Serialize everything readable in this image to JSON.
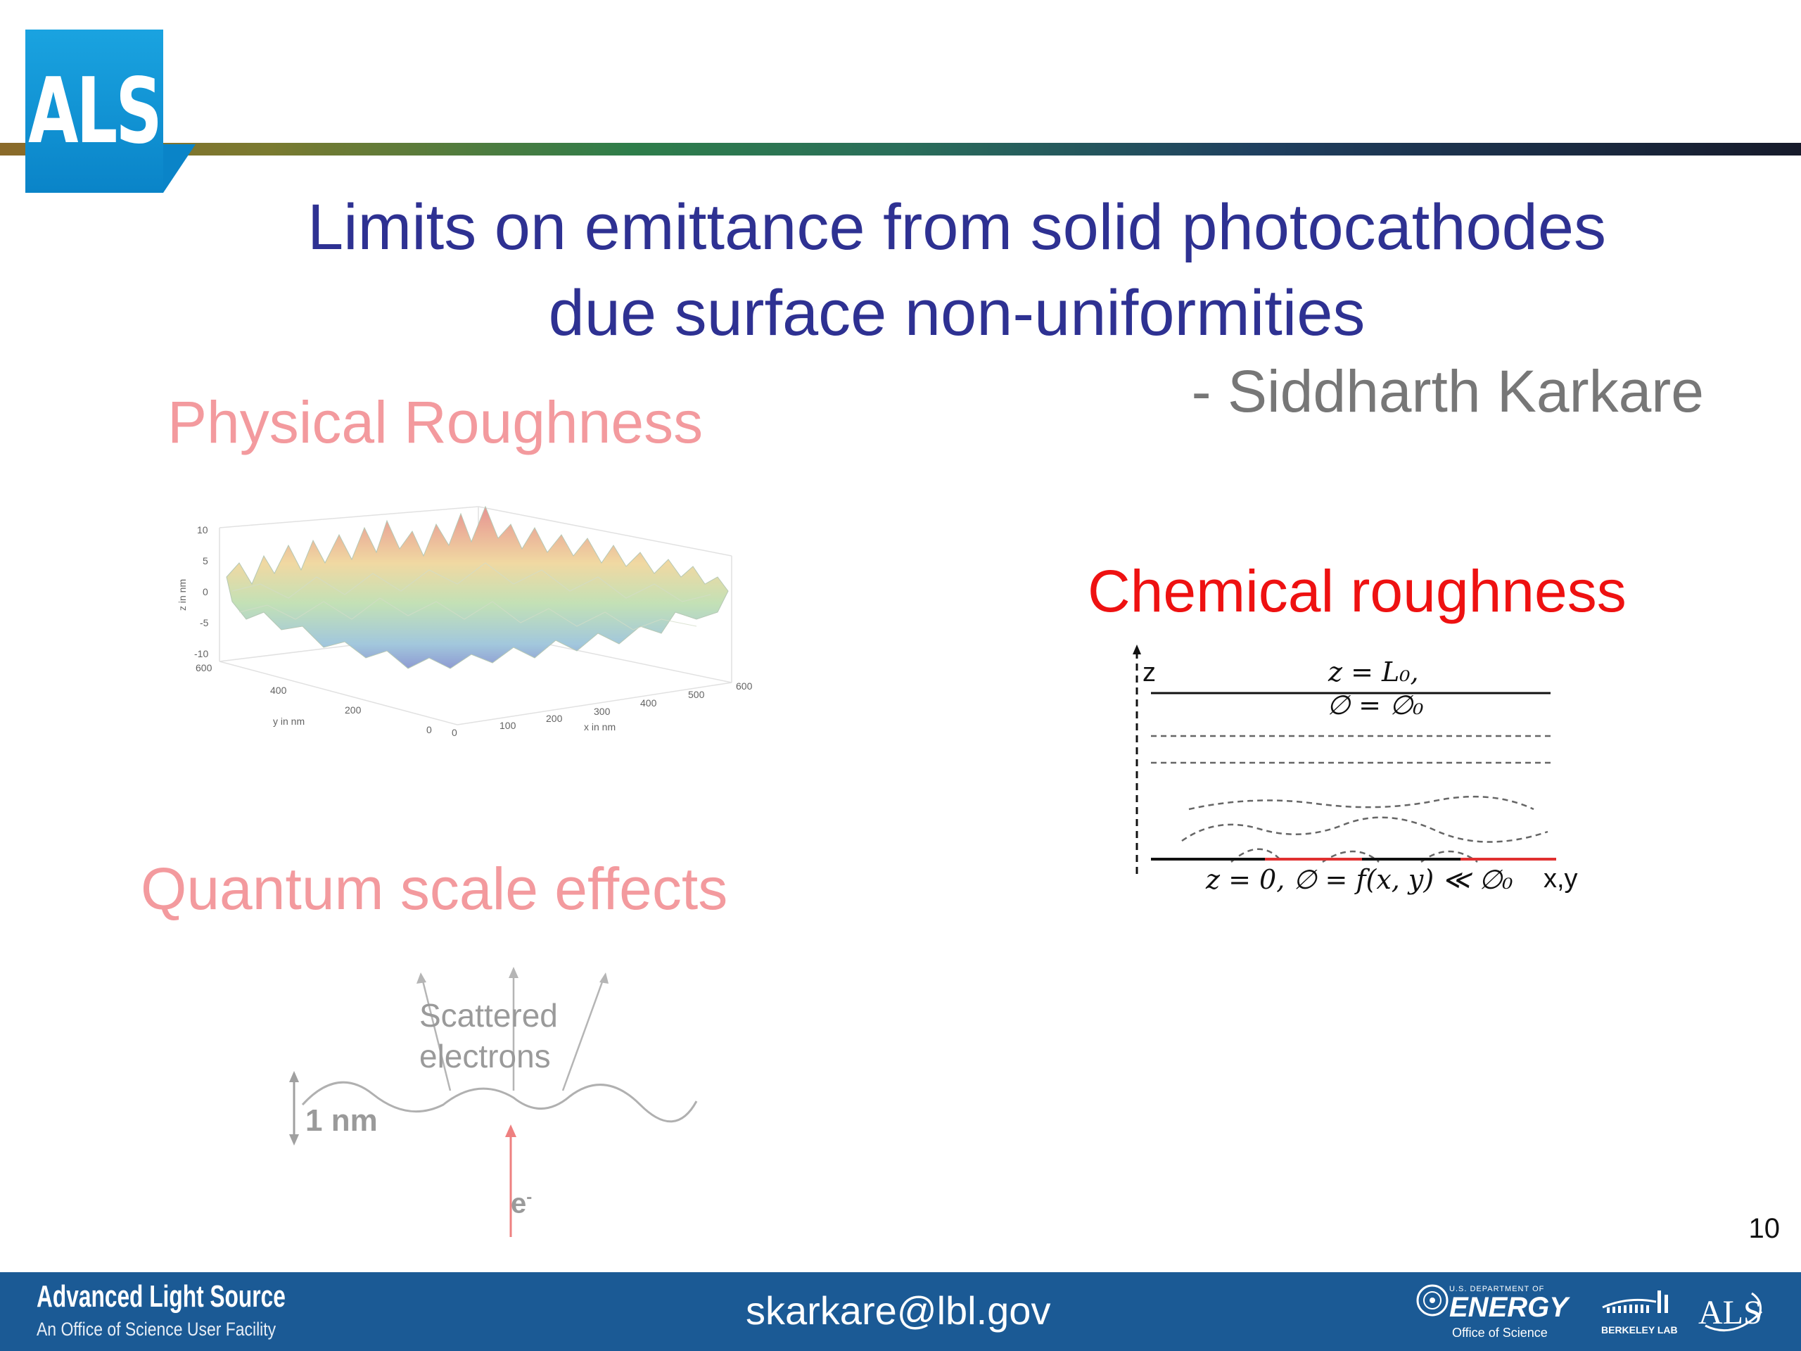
{
  "header": {
    "logo_text": "ALS"
  },
  "title": {
    "line1": "Limits on emittance from solid photocathodes",
    "line2": "due surface non-uniformities",
    "author": "- Siddharth Karkare"
  },
  "sections": {
    "physical": "Physical Roughness",
    "quantum": "Quantum scale effects",
    "chemical": "Chemical roughness"
  },
  "surface_plot": {
    "z_label": "z in nm",
    "y_label": "y in nm",
    "x_label": "x in nm",
    "z_ticks": [
      "10",
      "5",
      "0",
      "-5",
      "-10"
    ],
    "y_ticks": [
      "600",
      "400",
      "200",
      "0"
    ],
    "x_ticks": [
      "0",
      "100",
      "200",
      "300",
      "400",
      "500",
      "600"
    ]
  },
  "chemical_diagram": {
    "axis_z": "z",
    "top_eq_1": "z = L₀,",
    "top_eq_2": "∅ = ∅₀",
    "bottom_eq": "z = 0, ∅ = f(x, y) ≪ ∅₀",
    "axis_xy": "x,y"
  },
  "quantum_diagram": {
    "scattered_line1": "Scattered",
    "scattered_line2": "electrons",
    "height_label": "1 nm",
    "electron_label": "e",
    "electron_sup": "-"
  },
  "footer": {
    "org_name": "Advanced Light Source",
    "org_sub": "An Office of Science User Facility",
    "email": "skarkare@lbl.gov",
    "doe_top": "U.S. DEPARTMENT OF",
    "doe_energy": "ENERGY",
    "doe_office": "Office of Science",
    "berkeley_lab": "BERKELEY LAB",
    "als_small": "ALS"
  },
  "page_number": "10",
  "colors": {
    "title": "#2e3192",
    "section_faded": "#f39a9e",
    "section_chemical": "#ee1111",
    "footer_bg": "#1b5a95",
    "logo_bg": "#0a84c8"
  }
}
